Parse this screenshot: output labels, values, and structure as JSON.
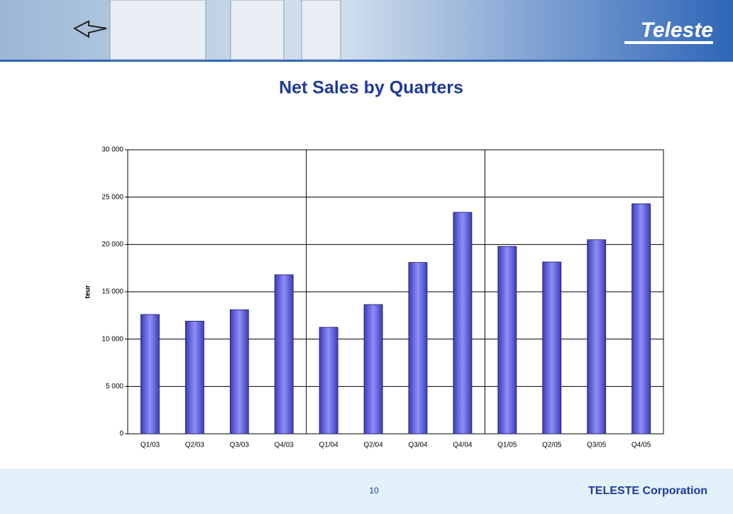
{
  "logo": "Teleste",
  "chart_data": {
    "type": "bar",
    "title": "Net Sales by Quarters",
    "y_label": "teur",
    "categories": [
      "Q1/03",
      "Q2/03",
      "Q3/03",
      "Q4/03",
      "Q1/04",
      "Q2/04",
      "Q3/04",
      "Q4/04",
      "Q1/05",
      "Q2/05",
      "Q3/05",
      "Q4/05"
    ],
    "values": [
      12600,
      11900,
      13100,
      16800,
      11250,
      13650,
      18100,
      23400,
      19800,
      18150,
      20500,
      24300
    ],
    "color": "#7b7bf0",
    "ylim": [
      0,
      30000
    ],
    "yticks": [
      0,
      {
        "value": 5000,
        "label": "5 000"
      },
      {
        "value": 10000,
        "label": "10 000"
      },
      {
        "value": 15000,
        "label": "15 000"
      },
      {
        "value": 20000,
        "label": "20 000"
      },
      {
        "value": 25000,
        "label": "25 000"
      },
      {
        "value": 30000,
        "label": "30 000"
      }
    ],
    "grid": true
  },
  "footer": {
    "page": "10",
    "company": "TELESTE Corporation"
  }
}
